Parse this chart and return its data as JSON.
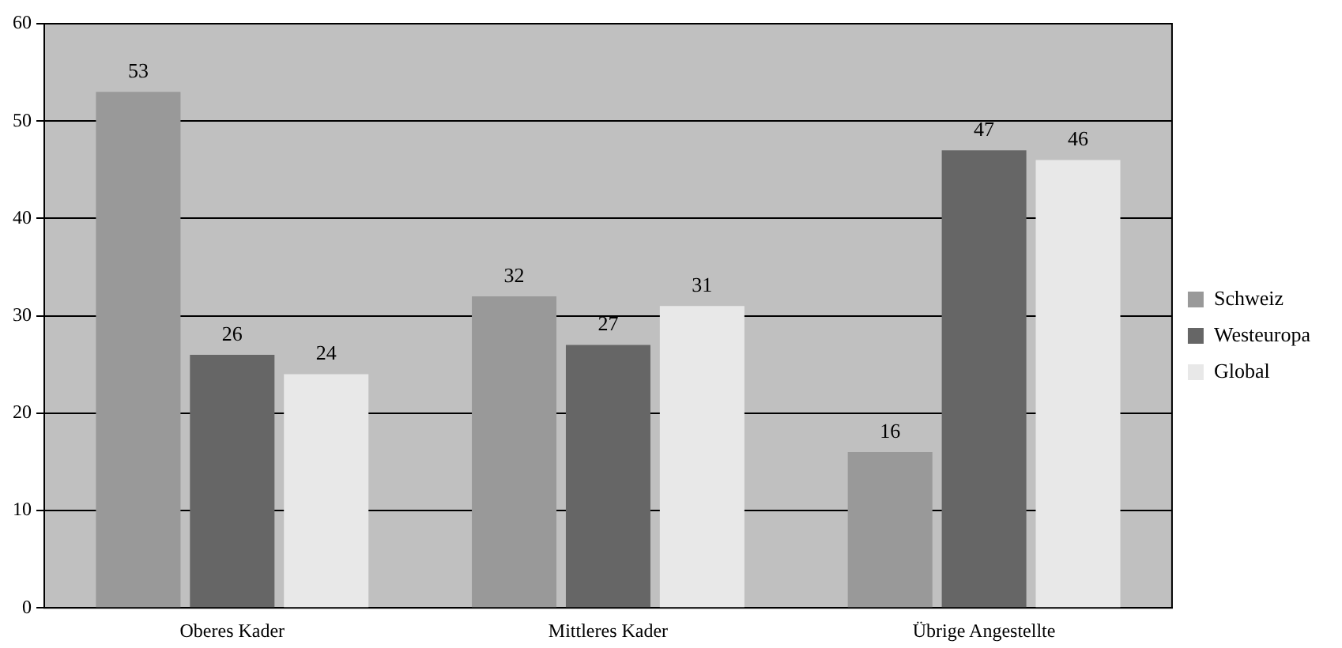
{
  "chart_data": {
    "type": "bar",
    "categories": [
      "Oberes Kader",
      "Mittleres Kader",
      "Übrige Angestellte"
    ],
    "series": [
      {
        "name": "Schweiz",
        "color": "#999999",
        "values": [
          53,
          32,
          16
        ]
      },
      {
        "name": "Westeuropa",
        "color": "#666666",
        "values": [
          26,
          27,
          47
        ]
      },
      {
        "name": "Global",
        "color": "#e8e8e8",
        "values": [
          24,
          31,
          46
        ]
      }
    ],
    "ylim": [
      0,
      60
    ],
    "yticks": [
      0,
      10,
      20,
      30,
      40,
      50,
      60
    ],
    "grid": "y",
    "legend": "right",
    "data_labels": true
  }
}
